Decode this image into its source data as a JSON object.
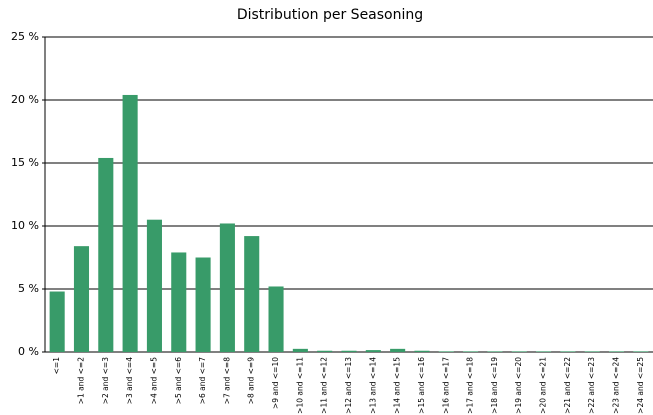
{
  "chart_data": {
    "type": "bar",
    "title": "Distribution per Seasoning",
    "categories": [
      "<=1",
      ">1 and <=2",
      ">2 and <=3",
      ">3 and <=4",
      ">4 and <=5",
      ">5 and <=6",
      ">6 and <=7",
      ">7 and <=8",
      ">8 and <=9",
      ">9 and <=10",
      ">10 and <=11",
      ">11 and <=12",
      ">12 and <=13",
      ">13 and <=14",
      ">14 and <=15",
      ">15 and <=16",
      ">16 and <=17",
      ">17 and <=18",
      ">18 and <=19",
      ">19 and <=20",
      ">20 and <=21",
      ">21 and <=22",
      ">22 and <=23",
      ">23 and <=24",
      ">24 and <=25"
    ],
    "values": [
      4.8,
      8.4,
      15.4,
      20.4,
      10.5,
      7.9,
      7.5,
      10.2,
      9.2,
      5.2,
      0.25,
      0.1,
      0.1,
      0.15,
      0.25,
      0.1,
      0.05,
      0.05,
      0.05,
      0.05,
      0.05,
      0.05,
      0.05,
      0.05,
      0.05
    ],
    "color": "#389b69",
    "ylim": [
      0,
      25
    ],
    "yticks": [
      {
        "value": 0,
        "label": "0 %"
      },
      {
        "value": 5,
        "label": "5 %"
      },
      {
        "value": 10,
        "label": "10 %"
      },
      {
        "value": 15,
        "label": "15 %"
      },
      {
        "value": 20,
        "label": "20 %"
      },
      {
        "value": 25,
        "label": "25 %"
      }
    ],
    "grid": true
  }
}
